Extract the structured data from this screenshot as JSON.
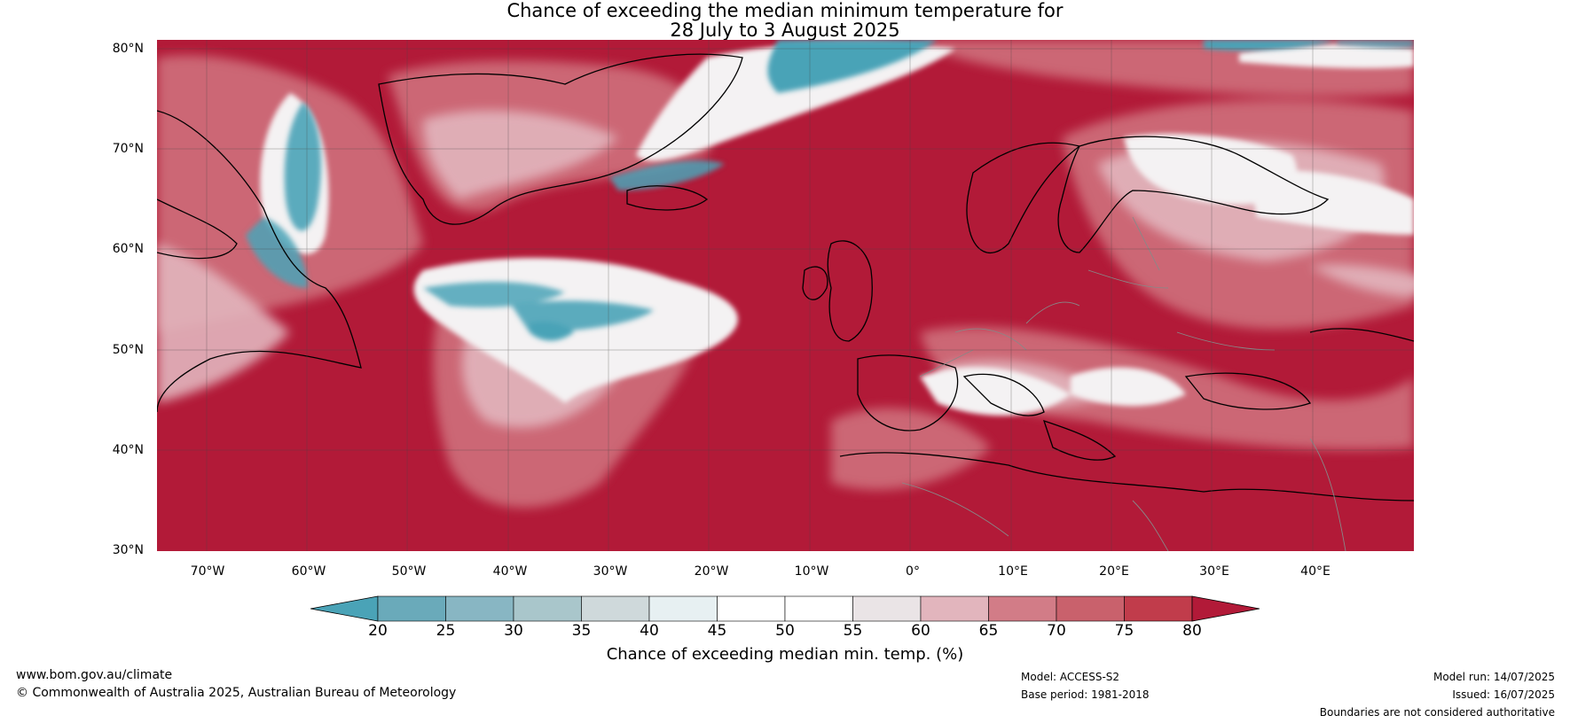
{
  "title_line1": "Chance of exceeding the median minimum temperature for",
  "title_line2": "28 July to 3 August 2025",
  "lat_labels": [
    "80°N",
    "70°N",
    "60°N",
    "50°N",
    "40°N",
    "30°N"
  ],
  "lon_labels": [
    "70°W",
    "60°W",
    "50°W",
    "40°W",
    "30°W",
    "20°W",
    "10°W",
    "0°",
    "10°E",
    "20°E",
    "30°E",
    "40°E"
  ],
  "colorbar": {
    "ticks": [
      "20",
      "25",
      "30",
      "35",
      "40",
      "45",
      "50",
      "55",
      "60",
      "65",
      "70",
      "75",
      "80"
    ],
    "colors": [
      "#4aa3b7",
      "#6aaaba",
      "#88b6c3",
      "#a9c6cb",
      "#cfd9db",
      "#e7f0f2",
      "#ffffff",
      "#ffffff",
      "#eae4e6",
      "#e2b5bd",
      "#d27c87",
      "#c9616c",
      "#c13c4b",
      "#b21a38"
    ],
    "label": "Chance of exceeding median min. temp. (%)"
  },
  "colors": {
    "hot": "#b21a38",
    "cold": "#4aa3b7",
    "grid": "#444444",
    "coast": "#000000",
    "border": "#888888"
  },
  "footer": {
    "website": "www.bom.gov.au/climate",
    "copyright": "© Commonwealth of Australia 2025, Australian Bureau of Meteorology",
    "model": "Model: ACCESS-S2",
    "base_period": "Base period: 1981-2018",
    "model_run": "Model run: 14/07/2025",
    "issued": "Issued: 16/07/2025",
    "disclaimer": "Boundaries are not considered authoritative"
  }
}
